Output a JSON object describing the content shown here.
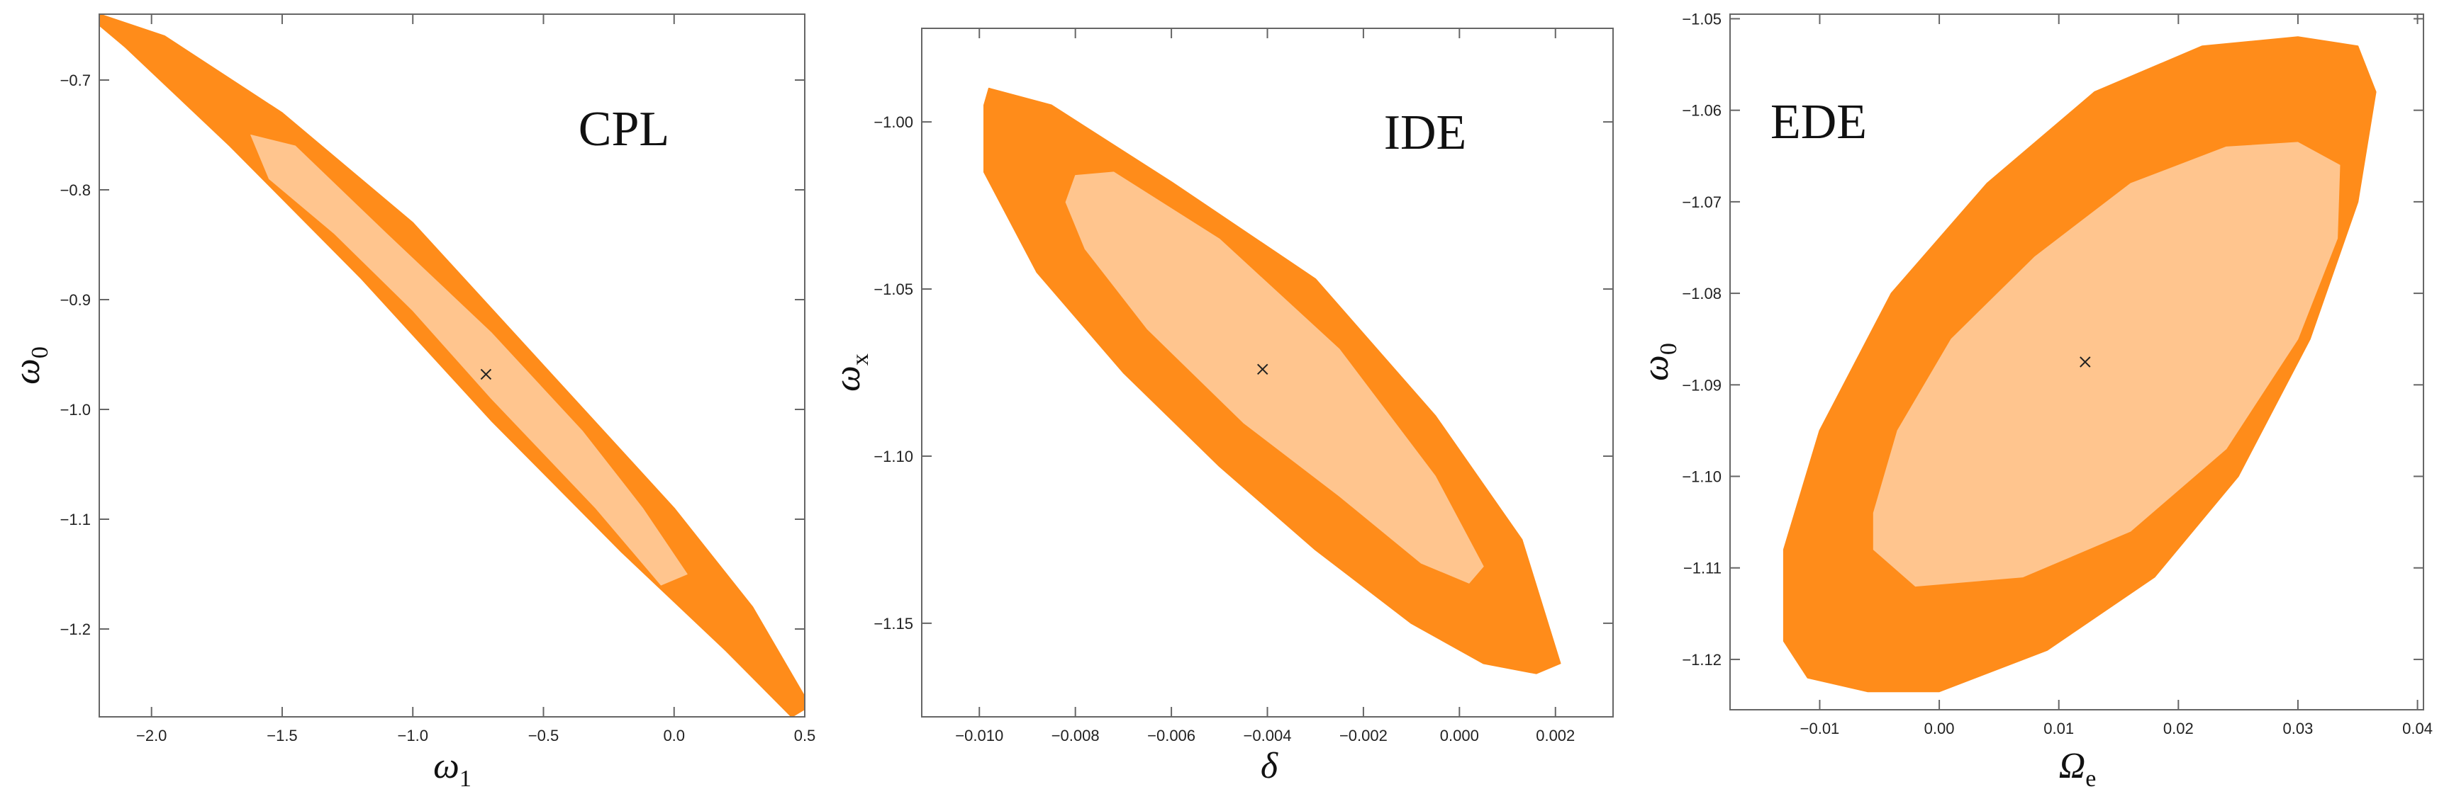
{
  "colors": {
    "outer": "#FF8C1A",
    "inner": "#FFC58E",
    "frame": "#666666",
    "marker": "#222222"
  },
  "chart_data": [
    {
      "type": "contour",
      "title": "CPL",
      "xlabel": "ω",
      "xlabel_sub": "1",
      "ylabel": "ω",
      "ylabel_sub": "0",
      "xlim": [
        -2.2,
        0.5
      ],
      "ylim": [
        -1.28,
        -0.64
      ],
      "xticks": [
        -2.0,
        -1.5,
        -1.0,
        -0.5,
        0.0,
        0.5
      ],
      "xtick_labels": [
        "−2.0",
        "−1.5",
        "−1.0",
        "−0.5",
        "0.0",
        "0.5"
      ],
      "yticks": [
        -1.2,
        -1.1,
        -1.0,
        -0.9,
        -0.8,
        -0.7
      ],
      "ytick_labels": [
        "−1.2",
        "−1.1",
        "−1.0",
        "−0.9",
        "−0.8",
        "−0.7"
      ],
      "best_fit": [
        -0.72,
        -0.968
      ],
      "outer": [
        [
          -2.2,
          -0.64
        ],
        [
          -1.95,
          -0.66
        ],
        [
          -1.5,
          -0.73
        ],
        [
          -1.0,
          -0.83
        ],
        [
          -0.5,
          -0.96
        ],
        [
          0.0,
          -1.09
        ],
        [
          0.3,
          -1.18
        ],
        [
          0.52,
          -1.27
        ],
        [
          0.45,
          -1.28
        ],
        [
          0.2,
          -1.22
        ],
        [
          -0.2,
          -1.13
        ],
        [
          -0.7,
          -1.01
        ],
        [
          -1.2,
          -0.88
        ],
        [
          -1.7,
          -0.76
        ],
        [
          -2.1,
          -0.67
        ],
        [
          -2.2,
          -0.65
        ]
      ],
      "inner": [
        [
          -1.62,
          -0.75
        ],
        [
          -1.45,
          -0.76
        ],
        [
          -1.1,
          -0.84
        ],
        [
          -0.7,
          -0.93
        ],
        [
          -0.35,
          -1.02
        ],
        [
          -0.12,
          -1.09
        ],
        [
          0.05,
          -1.15
        ],
        [
          -0.05,
          -1.16
        ],
        [
          -0.3,
          -1.09
        ],
        [
          -0.7,
          -0.99
        ],
        [
          -1.0,
          -0.91
        ],
        [
          -1.3,
          -0.84
        ],
        [
          -1.55,
          -0.79
        ]
      ]
    },
    {
      "type": "contour",
      "title": "IDE",
      "xlabel": "δ",
      "xlabel_sub": "",
      "ylabel": "ω",
      "ylabel_sub": "x",
      "xlim": [
        -0.0112,
        0.0032
      ],
      "ylim": [
        -1.178,
        -0.972
      ],
      "xticks": [
        -0.01,
        -0.008,
        -0.006,
        -0.004,
        -0.002,
        0.0,
        0.002
      ],
      "xtick_labels": [
        "−0.010",
        "−0.008",
        "−0.006",
        "−0.004",
        "−0.002",
        "0.000",
        "0.002"
      ],
      "yticks": [
        -1.15,
        -1.1,
        -1.05,
        -1.0
      ],
      "ytick_labels": [
        "−1.15",
        "−1.10",
        "−1.05",
        "−1.00"
      ],
      "best_fit": [
        -0.0041,
        -1.074
      ],
      "outer": [
        [
          -0.0098,
          -0.99
        ],
        [
          -0.0085,
          -0.995
        ],
        [
          -0.006,
          -1.018
        ],
        [
          -0.003,
          -1.047
        ],
        [
          -0.0005,
          -1.088
        ],
        [
          0.0013,
          -1.125
        ],
        [
          0.0021,
          -1.162
        ],
        [
          0.0016,
          -1.165
        ],
        [
          0.0005,
          -1.162
        ],
        [
          -0.001,
          -1.15
        ],
        [
          -0.003,
          -1.128
        ],
        [
          -0.005,
          -1.103
        ],
        [
          -0.007,
          -1.075
        ],
        [
          -0.0088,
          -1.045
        ],
        [
          -0.0099,
          -1.015
        ],
        [
          -0.0099,
          -0.995
        ]
      ],
      "inner": [
        [
          -0.008,
          -1.016
        ],
        [
          -0.0072,
          -1.015
        ],
        [
          -0.005,
          -1.035
        ],
        [
          -0.0025,
          -1.068
        ],
        [
          -0.0005,
          -1.106
        ],
        [
          0.0005,
          -1.133
        ],
        [
          0.0002,
          -1.138
        ],
        [
          -0.0008,
          -1.132
        ],
        [
          -0.0025,
          -1.112
        ],
        [
          -0.0045,
          -1.09
        ],
        [
          -0.0065,
          -1.062
        ],
        [
          -0.0078,
          -1.038
        ],
        [
          -0.0082,
          -1.024
        ]
      ]
    },
    {
      "type": "contour",
      "title": "EDE",
      "xlabel": "Ω",
      "xlabel_sub": "e",
      "ylabel": "ω",
      "ylabel_sub": "0",
      "xlim": [
        -0.0175,
        0.0405
      ],
      "ylim": [
        -1.1255,
        -1.0495
      ],
      "xticks": [
        -0.01,
        0.0,
        0.01,
        0.02,
        0.03,
        0.04
      ],
      "xtick_labels": [
        "−0.01",
        "0.00",
        "0.01",
        "0.02",
        "0.03",
        "0.04"
      ],
      "yticks": [
        -1.12,
        -1.11,
        -1.1,
        -1.09,
        -1.08,
        -1.07,
        -1.06,
        -1.05
      ],
      "ytick_labels": [
        "−1.12",
        "−1.11",
        "−1.10",
        "−1.09",
        "−1.08",
        "−1.07",
        "−1.06",
        "−1.05"
      ],
      "best_fit": [
        0.0122,
        -1.0875
      ],
      "outer": [
        [
          -0.013,
          -1.118
        ],
        [
          -0.013,
          -1.108
        ],
        [
          -0.01,
          -1.095
        ],
        [
          -0.004,
          -1.08
        ],
        [
          0.004,
          -1.068
        ],
        [
          0.013,
          -1.058
        ],
        [
          0.022,
          -1.053
        ],
        [
          0.03,
          -1.052
        ],
        [
          0.035,
          -1.053
        ],
        [
          0.0365,
          -1.058
        ],
        [
          0.035,
          -1.07
        ],
        [
          0.031,
          -1.085
        ],
        [
          0.025,
          -1.1
        ],
        [
          0.018,
          -1.111
        ],
        [
          0.009,
          -1.119
        ],
        [
          0.0,
          -1.1235
        ],
        [
          -0.006,
          -1.1235
        ],
        [
          -0.011,
          -1.122
        ]
      ],
      "inner": [
        [
          -0.0055,
          -1.104
        ],
        [
          -0.0035,
          -1.095
        ],
        [
          0.001,
          -1.085
        ],
        [
          0.008,
          -1.076
        ],
        [
          0.016,
          -1.068
        ],
        [
          0.024,
          -1.064
        ],
        [
          0.03,
          -1.0635
        ],
        [
          0.0335,
          -1.066
        ],
        [
          0.0333,
          -1.074
        ],
        [
          0.03,
          -1.085
        ],
        [
          0.024,
          -1.097
        ],
        [
          0.016,
          -1.106
        ],
        [
          0.007,
          -1.111
        ],
        [
          -0.002,
          -1.112
        ],
        [
          -0.0055,
          -1.108
        ]
      ]
    }
  ]
}
